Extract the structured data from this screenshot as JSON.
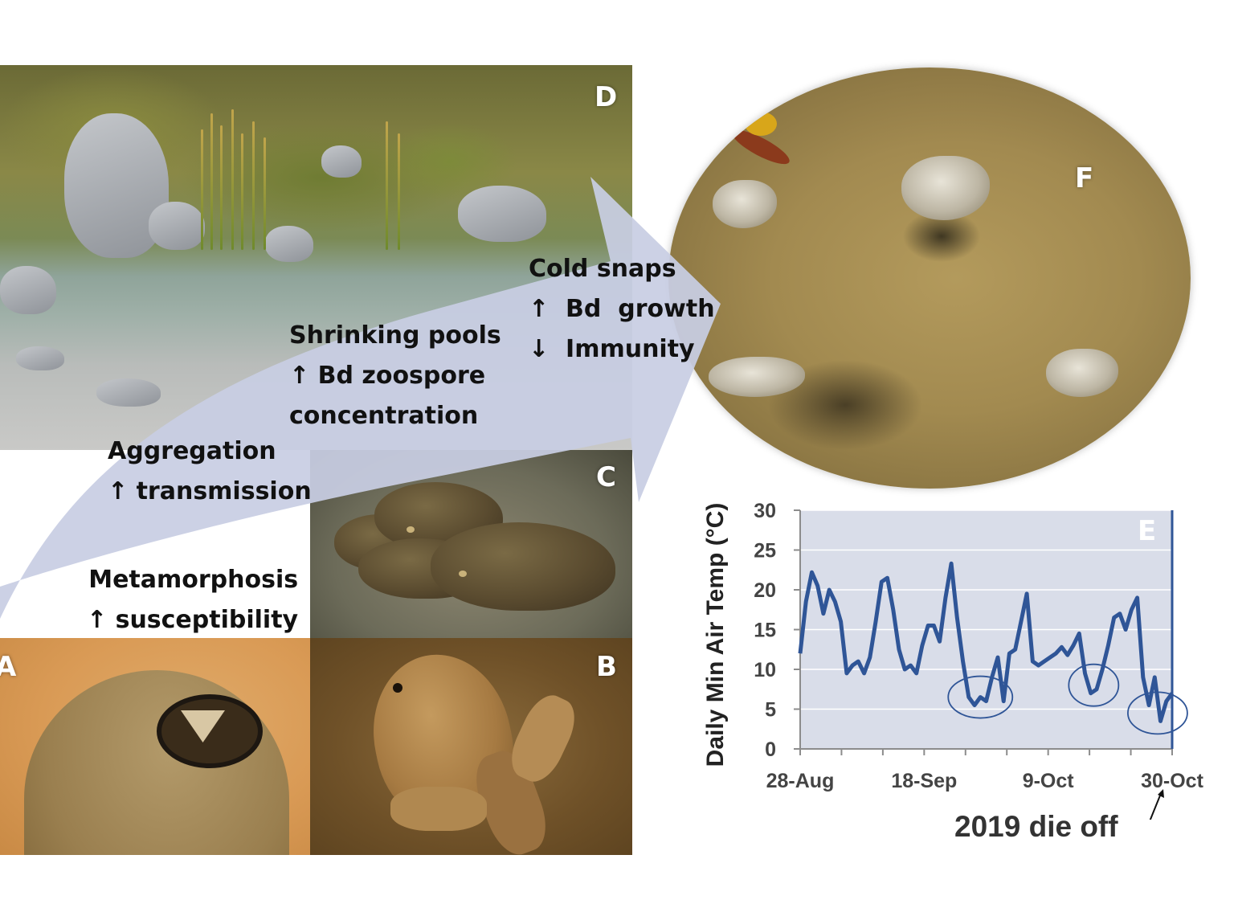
{
  "panels": {
    "a_letter": "A",
    "b_letter": "B",
    "c_letter": "C",
    "d_letter": "D",
    "e_letter": "E",
    "f_letter": "F"
  },
  "labels": {
    "cold_snaps": "Cold snaps\n↑  Bd  growth\n↓  Immunity",
    "shrinking_pools": "Shrinking pools\n↑ Bd zoospore\nconcentration",
    "aggregation": "Aggregation\n↑ transmission",
    "metamorphosis": "Metamorphosis\n↑ susceptibility"
  },
  "colors": {
    "arrow_fill": "#c8cde3",
    "plot_bg": "#d9dde9",
    "line": "#2f5597",
    "grid": "#ffffff"
  },
  "annotation": {
    "die_off": "2019 die off"
  },
  "chart_data": {
    "type": "line",
    "ylabel": "Daily Min Air Temp (°C)",
    "xlabel": "",
    "ylim": [
      0,
      30
    ],
    "yticks": [
      0,
      5,
      10,
      15,
      20,
      25,
      30
    ],
    "x_tick_labels": [
      "28-Aug",
      "18-Sep",
      "9-Oct",
      "30-Oct"
    ],
    "x_start": "28-Aug",
    "x_end": "30-Oct",
    "grid": true,
    "panel_label": "E",
    "series": [
      {
        "values": [
          12,
          18.5,
          22.2,
          20.5,
          17,
          20,
          18.5,
          16,
          9.5,
          10.5,
          11,
          9.5,
          11.5,
          16,
          21,
          21.5,
          17.5,
          12.5,
          10,
          10.5,
          9.5,
          13,
          15.5,
          15.5,
          13.5,
          19,
          23.3,
          16.5,
          11,
          6.5,
          5.5,
          6.5,
          6,
          9,
          11.5,
          6,
          12,
          12.5,
          16,
          19.5,
          11,
          10.5,
          11,
          11.5,
          12,
          12.8,
          11.8,
          13,
          14.5,
          9.5,
          7,
          7.5,
          10,
          13,
          16.5,
          17,
          15,
          17.5,
          19,
          9,
          5.5,
          9,
          3.5,
          6,
          7
        ]
      }
    ],
    "circled_cold_snaps": [
      "late Sep",
      "mid Oct",
      "late Oct"
    ]
  }
}
